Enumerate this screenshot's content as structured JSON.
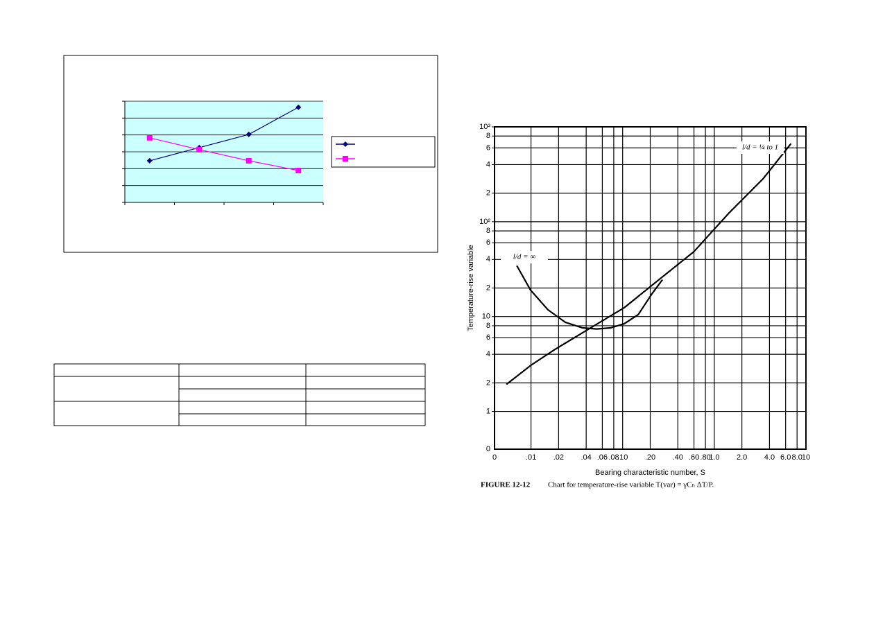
{
  "chart_data": [
    {
      "type": "line",
      "categories": [
        null,
        null,
        null,
        null
      ],
      "ylim": [
        0,
        6
      ],
      "yticks": [
        0,
        1,
        2,
        3,
        4,
        5,
        6
      ],
      "grid": true,
      "tick_labels": false,
      "plot_background": "#ccffff",
      "legend": "right",
      "series": [
        {
          "color": "#000080",
          "marker": "diamond",
          "values": [
            2.47,
            3.25,
            4.03,
            5.64
          ]
        },
        {
          "color": "#ff00ff",
          "marker": "square",
          "values": [
            3.83,
            3.13,
            2.47,
            1.89
          ]
        }
      ]
    },
    {
      "type": "line",
      "xlabel": "Bearing characteristic number, S",
      "ylabel": "Temperature-rise variable",
      "x_origin_label": "0",
      "y_origin_label": "0",
      "xlog": true,
      "ylog": true,
      "xlim": [
        0.004,
        10
      ],
      "ylim": [
        0.4,
        1000
      ],
      "xticks": [
        {
          "value": 0.01,
          "label": ".01"
        },
        {
          "value": 0.02,
          "label": ".02"
        },
        {
          "value": 0.04,
          "label": ".04"
        },
        {
          "value": 0.06,
          "label": ".06"
        },
        {
          "value": 0.08,
          "label": ".08"
        },
        {
          "value": 0.1,
          "label": ".10"
        },
        {
          "value": 0.2,
          "label": ".20"
        },
        {
          "value": 0.4,
          "label": ".40"
        },
        {
          "value": 0.6,
          "label": ".60"
        },
        {
          "value": 0.8,
          "label": ".80"
        },
        {
          "value": 1,
          "label": "1.0"
        },
        {
          "value": 2,
          "label": "2.0"
        },
        {
          "value": 4,
          "label": "4.0"
        },
        {
          "value": 6,
          "label": "6.0"
        },
        {
          "value": 8,
          "label": "8.0"
        },
        10
      ],
      "yticks": [
        1,
        2,
        4,
        6,
        8,
        10,
        {
          "value": 20,
          "label": "2"
        },
        {
          "value": 40,
          "label": "4"
        },
        {
          "value": 60,
          "label": "6"
        },
        {
          "value": 80,
          "label": "8"
        },
        {
          "value": 100,
          "label": "10²"
        },
        {
          "value": 200,
          "label": "2"
        },
        {
          "value": 400,
          "label": "4"
        },
        {
          "value": 600,
          "label": "6"
        },
        {
          "value": 800,
          "label": "8"
        },
        {
          "value": 1000,
          "label": "10³"
        }
      ],
      "grid": true,
      "series": [
        {
          "color": "#000000",
          "x": [
            0.007,
            0.0099,
            0.0153,
            0.0237,
            0.0366,
            0.052,
            0.0736,
            0.104,
            0.148,
            0.21,
            0.272
          ],
          "values": [
            34.4,
            19,
            11.8,
            8.7,
            7.6,
            7.4,
            7.6,
            8.4,
            10.5,
            17.5,
            24.5
          ]
        },
        {
          "color": "#000000",
          "x": [
            0.0054,
            0.0099,
            0.0182,
            0.0437,
            0.104,
            0.249,
            0.597,
            1.43,
            3.42,
            6.87
          ],
          "values": [
            1.93,
            3.05,
            4.5,
            7.5,
            12.4,
            24.5,
            48.2,
            122,
            285,
            665
          ]
        }
      ],
      "annotations": [
        "l/d = ∞",
        "l/d = ¼ to 1"
      ],
      "caption_label": "FIGURE 12-12",
      "caption": "Chart for temperature-rise variable T(var) = γCₕ ΔT/P."
    }
  ]
}
